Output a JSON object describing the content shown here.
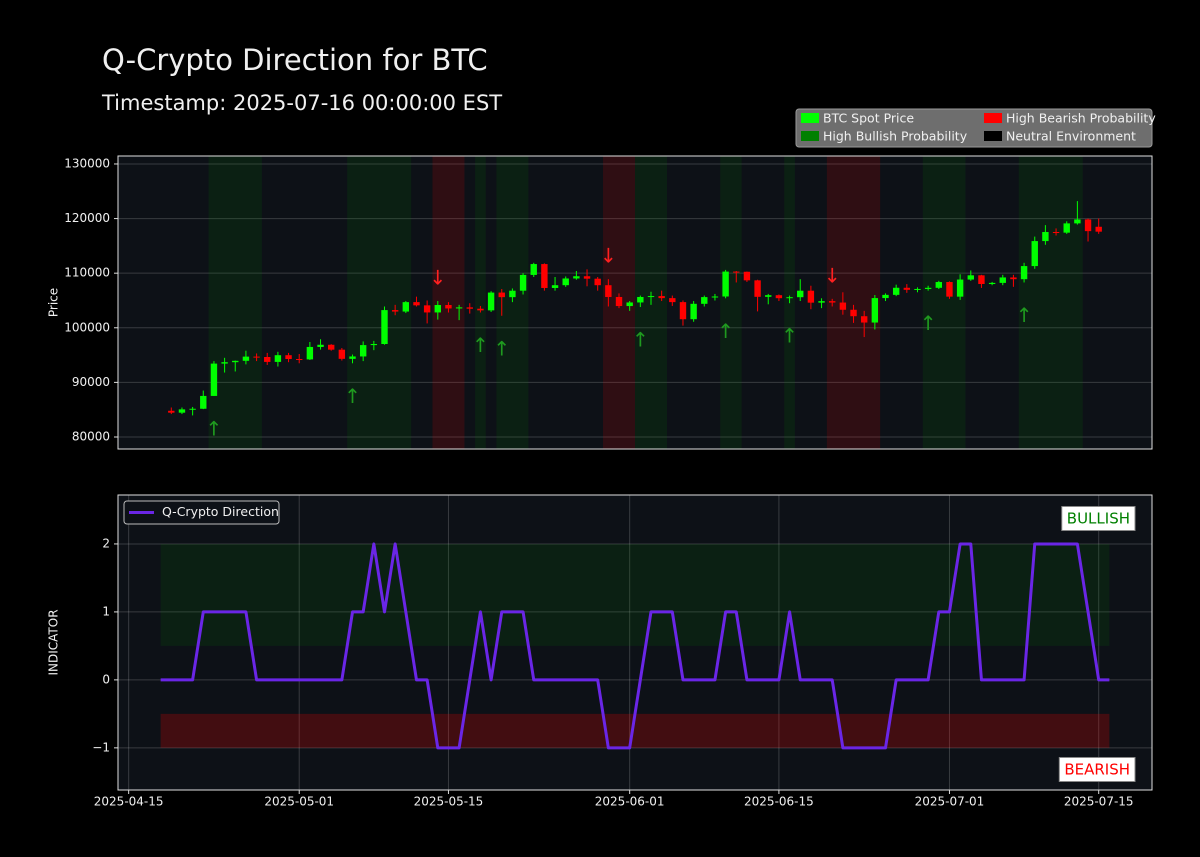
{
  "chart_data": [
    {
      "type": "candlestick",
      "title": "Q-Crypto Direction for BTC",
      "subtitle": "Timestamp: 2025-07-16 00:00:00 EST",
      "ylabel": "Price",
      "x": [
        "2025-04-19",
        "2025-04-20",
        "2025-04-21",
        "2025-04-22",
        "2025-04-23",
        "2025-04-24",
        "2025-04-25",
        "2025-04-26",
        "2025-04-27",
        "2025-04-28",
        "2025-04-29",
        "2025-04-30",
        "2025-05-01",
        "2025-05-02",
        "2025-05-03",
        "2025-05-04",
        "2025-05-05",
        "2025-05-06",
        "2025-05-07",
        "2025-05-08",
        "2025-05-09",
        "2025-05-10",
        "2025-05-11",
        "2025-05-12",
        "2025-05-13",
        "2025-05-14",
        "2025-05-15",
        "2025-05-16",
        "2025-05-17",
        "2025-05-18",
        "2025-05-19",
        "2025-05-20",
        "2025-05-21",
        "2025-05-22",
        "2025-05-23",
        "2025-05-24",
        "2025-05-25",
        "2025-05-26",
        "2025-05-27",
        "2025-05-28",
        "2025-05-29",
        "2025-05-30",
        "2025-05-31",
        "2025-06-01",
        "2025-06-02",
        "2025-06-03",
        "2025-06-04",
        "2025-06-05",
        "2025-06-06",
        "2025-06-07",
        "2025-06-08",
        "2025-06-09",
        "2025-06-10",
        "2025-06-11",
        "2025-06-12",
        "2025-06-13",
        "2025-06-14",
        "2025-06-15",
        "2025-06-16",
        "2025-06-17",
        "2025-06-18",
        "2025-06-19",
        "2025-06-20",
        "2025-06-21",
        "2025-06-22",
        "2025-06-23",
        "2025-06-24",
        "2025-06-25",
        "2025-06-26",
        "2025-06-27",
        "2025-06-28",
        "2025-06-29",
        "2025-06-30",
        "2025-07-01",
        "2025-07-02",
        "2025-07-03",
        "2025-07-04",
        "2025-07-05",
        "2025-07-06",
        "2025-07-07",
        "2025-07-08",
        "2025-07-09",
        "2025-07-10",
        "2025-07-11",
        "2025-07-12",
        "2025-07-13",
        "2025-07-14",
        "2025-07-15"
      ],
      "open": [
        84800,
        84450,
        85060,
        85170,
        87520,
        93440,
        93700,
        93950,
        94720,
        94650,
        93750,
        94980,
        94280,
        94210,
        96490,
        96890,
        95990,
        94310,
        94750,
        96830,
        97030,
        103240,
        102970,
        104700,
        104110,
        102810,
        104170,
        103540,
        103740,
        103490,
        103190,
        106450,
        105610,
        106790,
        109680,
        111670,
        107290,
        107800,
        109030,
        109440,
        108990,
        107800,
        105640,
        103980,
        104640,
        105640,
        105810,
        105430,
        104700,
        101570,
        104390,
        105620,
        105730,
        110290,
        110260,
        108690,
        105670,
        105970,
        105420,
        105600,
        106790,
        104600,
        104880,
        104620,
        103300,
        102120,
        100960,
        105440,
        106030,
        107330,
        106950,
        107110,
        107320,
        108380,
        105700,
        108830,
        109610,
        108020,
        108220,
        109220,
        108900,
        111300,
        115880,
        117540,
        117420,
        119120,
        119840,
        118500
      ],
      "high": [
        85400,
        85400,
        85500,
        88500,
        93900,
        94500,
        94000,
        95800,
        95300,
        95400,
        95600,
        95400,
        95200,
        97400,
        97900,
        97000,
        96300,
        95100,
        97500,
        97600,
        103900,
        104200,
        104900,
        105700,
        105000,
        104900,
        104700,
        104200,
        104500,
        104000,
        106700,
        107100,
        107200,
        110000,
        111900,
        111800,
        109300,
        109400,
        110400,
        110700,
        109300,
        108900,
        106300,
        104900,
        105900,
        106600,
        106800,
        105900,
        105000,
        104900,
        105900,
        106200,
        110600,
        110400,
        110300,
        108800,
        106200,
        106100,
        105900,
        108900,
        107700,
        105400,
        105300,
        106500,
        104200,
        103100,
        106000,
        106300,
        107900,
        108000,
        107400,
        107700,
        108600,
        108500,
        109800,
        110500,
        109700,
        108400,
        109700,
        109700,
        111900,
        116700,
        118800,
        118200,
        119500,
        123200,
        120000,
        120000
      ],
      "low": [
        84200,
        84200,
        83950,
        85100,
        87500,
        91800,
        92000,
        93300,
        93900,
        93200,
        92900,
        93700,
        93500,
        94100,
        96000,
        95800,
        94000,
        93500,
        93900,
        95900,
        96900,
        102300,
        102700,
        103900,
        100800,
        101500,
        102800,
        101400,
        102600,
        102800,
        102900,
        102200,
        104700,
        106100,
        109300,
        106800,
        106800,
        107500,
        108800,
        107600,
        106800,
        103900,
        103600,
        103100,
        103800,
        104200,
        104900,
        104000,
        100400,
        101100,
        103900,
        105000,
        105400,
        108300,
        108400,
        103000,
        104300,
        104900,
        104500,
        104900,
        103400,
        103600,
        103900,
        102400,
        100900,
        98300,
        99700,
        104900,
        105800,
        106400,
        106500,
        106800,
        107100,
        105300,
        105100,
        108600,
        107300,
        107800,
        107800,
        107500,
        108300,
        110800,
        115200,
        116900,
        117200,
        118900,
        115800,
        117200
      ],
      "close": [
        84450,
        85060,
        85170,
        87520,
        93440,
        93700,
        93950,
        94720,
        94650,
        93750,
        94980,
        94280,
        94210,
        96490,
        96890,
        95990,
        94310,
        94750,
        96830,
        97030,
        103240,
        102970,
        104700,
        104110,
        102810,
        104170,
        103540,
        103740,
        103490,
        103190,
        106450,
        105610,
        106790,
        109680,
        111670,
        107290,
        107800,
        109030,
        109440,
        108990,
        107800,
        105640,
        103980,
        104640,
        105640,
        105810,
        105430,
        104700,
        101570,
        104390,
        105620,
        105730,
        110290,
        110260,
        108690,
        105670,
        105970,
        105420,
        105600,
        106790,
        104600,
        104880,
        104620,
        103300,
        102120,
        100960,
        105440,
        106030,
        107330,
        106950,
        107110,
        107320,
        108380,
        105700,
        108830,
        109610,
        108020,
        108220,
        109220,
        108900,
        111300,
        115880,
        117540,
        117420,
        119120,
        119840,
        117700,
        117600
      ],
      "up_color": "#00ff00",
      "down_color": "#ff0000",
      "xlim": [
        "2025-04-14",
        "2025-07-20"
      ],
      "ylim": [
        77800,
        131460
      ],
      "yticks": [
        80000,
        90000,
        100000,
        110000,
        120000,
        130000
      ],
      "grid": true,
      "bullish_periods": [
        [
          "2025-04-23",
          "2025-04-27"
        ],
        [
          "2025-05-06",
          "2025-05-11"
        ],
        [
          "2025-05-18",
          "2025-05-18"
        ],
        [
          "2025-05-20",
          "2025-05-22"
        ],
        [
          "2025-06-02",
          "2025-06-04"
        ],
        [
          "2025-06-10",
          "2025-06-11"
        ],
        [
          "2025-06-16",
          "2025-06-16"
        ],
        [
          "2025-06-29",
          "2025-07-02"
        ],
        [
          "2025-07-08",
          "2025-07-13"
        ]
      ],
      "bearish_periods": [
        [
          "2025-05-14",
          "2025-05-16"
        ],
        [
          "2025-05-30",
          "2025-06-01"
        ],
        [
          "2025-06-20",
          "2025-06-24"
        ]
      ],
      "bullish_color": "#008000",
      "bearish_color": "#ff0000",
      "bullish_signals": [
        "2025-04-23",
        "2025-05-06",
        "2025-05-18",
        "2025-05-20",
        "2025-06-02",
        "2025-06-10",
        "2025-06-16",
        "2025-06-29",
        "2025-07-08"
      ],
      "bearish_signals": [
        "2025-05-14",
        "2025-05-30",
        "2025-06-20"
      ],
      "bullish_marker": "↑",
      "bearish_marker": "↓",
      "bullish_marker_color": "#1f9a1f",
      "bearish_marker_color": "#ff2020",
      "legend": {
        "loc": "upper right",
        "entries": [
          {
            "label": "BTC Spot Price",
            "color": "#00ff00"
          },
          {
            "label": "High Bullish Probability",
            "color": "#008000"
          },
          {
            "label": "High Bearish Probability",
            "color": "#ff0000"
          },
          {
            "label": "Neutral Environment",
            "color": "#000000"
          }
        ]
      }
    },
    {
      "type": "line",
      "ylabel": "INDICATOR",
      "x": [
        "2025-04-18",
        "2025-04-19",
        "2025-04-20",
        "2025-04-21",
        "2025-04-22",
        "2025-04-23",
        "2025-04-24",
        "2025-04-25",
        "2025-04-26",
        "2025-04-27",
        "2025-04-28",
        "2025-04-29",
        "2025-04-30",
        "2025-05-01",
        "2025-05-02",
        "2025-05-03",
        "2025-05-04",
        "2025-05-05",
        "2025-05-06",
        "2025-05-07",
        "2025-05-08",
        "2025-05-09",
        "2025-05-10",
        "2025-05-11",
        "2025-05-12",
        "2025-05-13",
        "2025-05-14",
        "2025-05-15",
        "2025-05-16",
        "2025-05-17",
        "2025-05-18",
        "2025-05-19",
        "2025-05-20",
        "2025-05-21",
        "2025-05-22",
        "2025-05-23",
        "2025-05-24",
        "2025-05-25",
        "2025-05-26",
        "2025-05-27",
        "2025-05-28",
        "2025-05-29",
        "2025-05-30",
        "2025-05-31",
        "2025-06-01",
        "2025-06-02",
        "2025-06-03",
        "2025-06-04",
        "2025-06-05",
        "2025-06-06",
        "2025-06-07",
        "2025-06-08",
        "2025-06-09",
        "2025-06-10",
        "2025-06-11",
        "2025-06-12",
        "2025-06-13",
        "2025-06-14",
        "2025-06-15",
        "2025-06-16",
        "2025-06-17",
        "2025-06-18",
        "2025-06-19",
        "2025-06-20",
        "2025-06-21",
        "2025-06-22",
        "2025-06-23",
        "2025-06-24",
        "2025-06-25",
        "2025-06-26",
        "2025-06-27",
        "2025-06-28",
        "2025-06-29",
        "2025-06-30",
        "2025-07-01",
        "2025-07-02",
        "2025-07-03",
        "2025-07-04",
        "2025-07-05",
        "2025-07-06",
        "2025-07-07",
        "2025-07-08",
        "2025-07-09",
        "2025-07-10",
        "2025-07-11",
        "2025-07-12",
        "2025-07-13",
        "2025-07-14",
        "2025-07-15",
        "2025-07-16"
      ],
      "series": [
        {
          "name": "Q-Crypto Direction",
          "color": "#6a26e6",
          "values": [
            0,
            0,
            0,
            0,
            1,
            1,
            1,
            1,
            1,
            0,
            0,
            0,
            0,
            0,
            0,
            0,
            0,
            0,
            1,
            1,
            2,
            1,
            2,
            1,
            0,
            0,
            -1,
            -1,
            -1,
            0,
            1,
            0,
            1,
            1,
            1,
            0,
            0,
            0,
            0,
            0,
            0,
            0,
            -1,
            -1,
            -1,
            0,
            1,
            1,
            1,
            0,
            0,
            0,
            0,
            1,
            1,
            0,
            0,
            0,
            0,
            1,
            0,
            0,
            0,
            0,
            -1,
            -1,
            -1,
            -1,
            -1,
            0,
            0,
            0,
            0,
            1,
            1,
            2,
            2,
            0,
            0,
            0,
            0,
            0,
            2,
            2,
            2,
            2,
            2,
            1,
            0,
            0
          ]
        }
      ],
      "xlim": [
        "2025-04-14",
        "2025-07-20"
      ],
      "xticks": [
        "2025-04-15",
        "2025-05-01",
        "2025-05-15",
        "2025-06-01",
        "2025-06-15",
        "2025-07-01",
        "2025-07-15"
      ],
      "ylim": [
        -1.62,
        2.72
      ],
      "yticks": [
        {
          "value": -1,
          "label": "−1"
        },
        0,
        1,
        2
      ],
      "grid": true,
      "bullish_zone": [
        0.5,
        2
      ],
      "bearish_zone": [
        -1,
        -0.5
      ],
      "bullish_zone_color": "#008000",
      "bearish_zone_color": "#ff0000",
      "annotations": [
        {
          "text": "BULLISH",
          "color": "#008000"
        },
        {
          "text": "BEARISH",
          "color": "#ff0000"
        }
      ],
      "legend": {
        "loc": "upper left"
      }
    }
  ]
}
